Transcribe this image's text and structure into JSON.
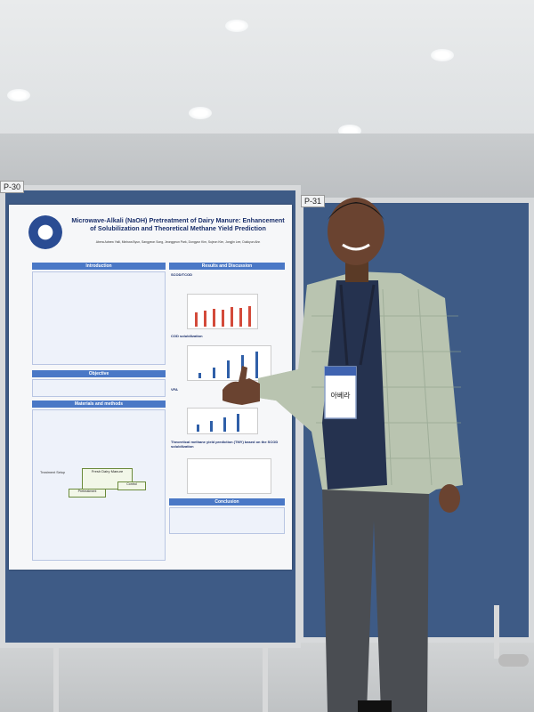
{
  "booth_tags": {
    "left": "P-30",
    "right": "P-31"
  },
  "poster": {
    "title": "Microwave-Alkali (NaOH) Pretreatment of Dairy Manure: Enhancement of Solubilization and Theoretical Methane Yield Prediction",
    "authors": "Abera Adnew Yalli, Minhwa Byun, Sangyeon Song, Jeonggeun Park, Dongyun Kim, Sujeon Kim, Jongjin Lee, Dukkyun Ahn",
    "sections": {
      "introduction": "Introduction",
      "objective": "Objective",
      "materials": "Materials and methods",
      "results": "Results and Discussion",
      "conclusion": "Conclusion"
    },
    "subheads": {
      "scod": "SCOD/TCOD",
      "cod_solub": "COD solubilization",
      "vfa": "VFA",
      "tmy": "Theoretical methane yield prediction (TMY) based on the SCOD solubilization",
      "flow_top": "Fresh Dairy Manure",
      "flow_mid": "Pretreatment",
      "flow_ctrl": "Control",
      "flow_label": "Treatment Setup"
    }
  },
  "badge": {
    "name": "아베라"
  },
  "colors": {
    "board": "#3e5b86",
    "poster_header": "#4a78c6",
    "poster_bars_red": "#d34a3a",
    "poster_bars_blue": "#2f5fa8"
  }
}
